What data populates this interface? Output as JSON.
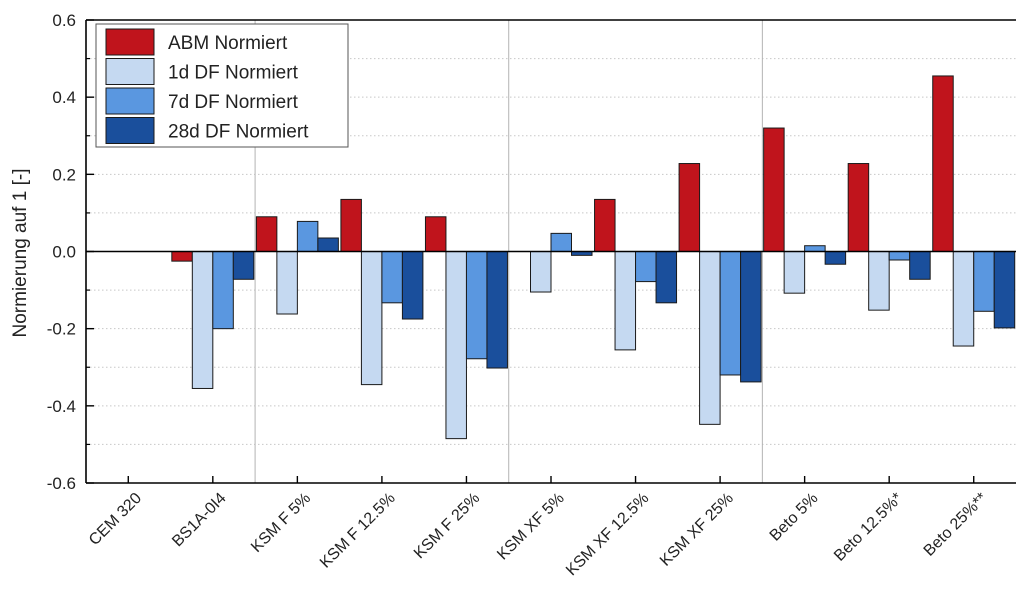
{
  "chart_data": {
    "type": "bar",
    "title": "",
    "xlabel": "",
    "ylabel": "Normierung auf 1 [-]",
    "ylim": [
      -0.6,
      0.6
    ],
    "yticks": [
      -0.6,
      -0.4,
      -0.2,
      0.0,
      0.2,
      0.4,
      0.6
    ],
    "ytick_labels": [
      "-0.6",
      "-0.4",
      "-0.2",
      "0.0",
      "0.2",
      "0.4",
      "0.6"
    ],
    "grid": "horizontal dotted",
    "legend_position": "top-left",
    "categories": [
      "CEM 320",
      "BS1A-0I4",
      "KSM F 5%",
      "KSM F 12.5%",
      "KSM F 25%",
      "KSM XF 5%",
      "KSM XF 12.5%",
      "KSM XF 25%",
      "Beto 5%",
      "Beto 12.5%*",
      "Beto 25%**"
    ],
    "group_separators_after": [
      1,
      4,
      7
    ],
    "series": [
      {
        "name": "ABM Normiert",
        "color": "#c0141c",
        "values": [
          0.0,
          -0.025,
          0.09,
          0.135,
          0.09,
          0.0,
          0.135,
          0.228,
          0.32,
          0.228,
          0.455
        ]
      },
      {
        "name": "1d DF Normiert",
        "color": "#c5d9f1",
        "values": [
          0.0,
          -0.355,
          -0.162,
          -0.345,
          -0.485,
          -0.105,
          -0.255,
          -0.448,
          -0.108,
          -0.152,
          -0.245
        ]
      },
      {
        "name": "7d DF Normiert",
        "color": "#5a97e0",
        "values": [
          0.0,
          -0.2,
          0.078,
          -0.133,
          -0.278,
          0.047,
          -0.078,
          -0.32,
          0.015,
          -0.022,
          -0.155
        ]
      },
      {
        "name": "28d DF Normiert",
        "color": "#1a4f9c",
        "values": [
          0.0,
          -0.072,
          0.035,
          -0.175,
          -0.302,
          -0.01,
          -0.133,
          -0.338,
          -0.033,
          -0.072,
          -0.198
        ]
      }
    ]
  }
}
